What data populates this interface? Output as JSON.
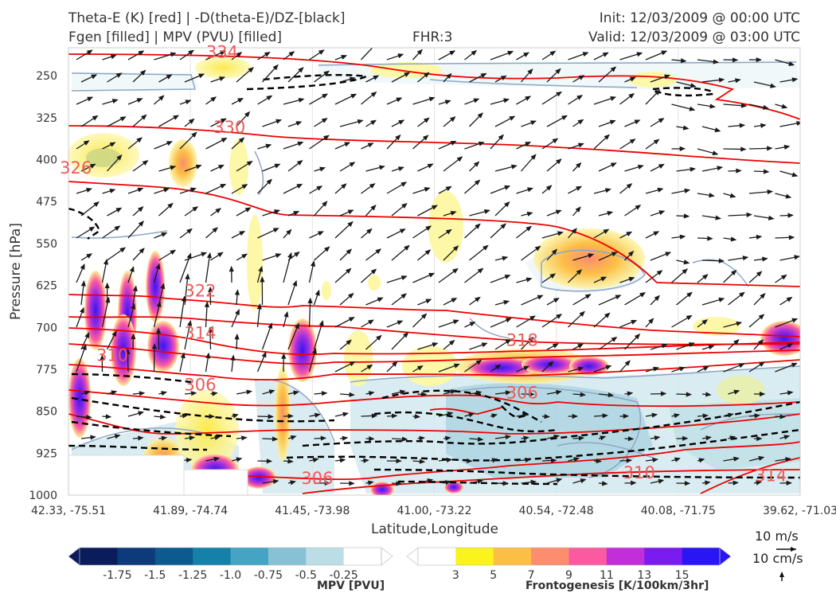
{
  "header": {
    "title_left_1": "Theta-E (K) [red] | -D(theta-E)/DZ-[black]",
    "title_left_2": "Fgen [filled] | MPV (PVU) [filled]",
    "fhr": "FHR:3",
    "init": "Init: 12/03/2009 @ 00:00 UTC",
    "valid": "Valid: 12/03/2009 @ 03:00 UTC"
  },
  "chart_data": {
    "type": "contour",
    "title": "Theta-E (K) [red] | -D(theta-E)/DZ-[black] / Fgen [filled] | MPV (PVU) [filled]",
    "xlabel": "Latitude,Longitude",
    "ylabel": "Pressure [hPa]",
    "x_ticks": [
      "42.33, -75.51",
      "41.89, -74.74",
      "41.45, -73.98",
      "41.00, -73.22",
      "40.54, -72.48",
      "40.08, -71.75",
      "39.62, -71.03"
    ],
    "y_ticks": [
      250,
      325,
      400,
      475,
      550,
      625,
      700,
      775,
      850,
      925,
      1000
    ],
    "ylim": [
      1000,
      200
    ],
    "y_inverted": true,
    "theta_e_labels": [
      {
        "text": "334",
        "x": 0.21,
        "p": 218
      },
      {
        "text": "330",
        "x": 0.22,
        "p": 352
      },
      {
        "text": "326",
        "x": 0.01,
        "p": 425
      },
      {
        "text": "322",
        "x": 0.18,
        "p": 645
      },
      {
        "text": "314",
        "x": 0.18,
        "p": 720
      },
      {
        "text": "310",
        "x": 0.06,
        "p": 760
      },
      {
        "text": "306",
        "x": 0.18,
        "p": 813
      },
      {
        "text": "318",
        "x": 0.62,
        "p": 733
      },
      {
        "text": "306",
        "x": 0.62,
        "p": 827
      },
      {
        "text": "306",
        "x": 0.34,
        "p": 980
      },
      {
        "text": "310",
        "x": 0.78,
        "p": 970
      },
      {
        "text": "314",
        "x": 0.96,
        "p": 975
      }
    ],
    "mpv_colorbar": {
      "label": "MPV [PVU]",
      "ticks": [
        "-1.75",
        "-1.5",
        "-1.25",
        "-1.0",
        "-0.75",
        "-0.5",
        "-0.25"
      ],
      "colors": [
        "#0b1c5c",
        "#0d3a78",
        "#0d5a8e",
        "#1580a8",
        "#45a3c4",
        "#86c1d6",
        "#bcdde6",
        "#ffffff"
      ]
    },
    "fgen_colorbar": {
      "label": "Frontogenesis [K/100km/3hr]",
      "ticks": [
        "3",
        "5",
        "7",
        "9",
        "11",
        "13",
        "15"
      ],
      "colors": [
        "#ffffff",
        "#fbf31c",
        "#fcbf46",
        "#fc8d6f",
        "#fb5aa0",
        "#c12fd8",
        "#7a1bf0",
        "#2a16f4"
      ]
    },
    "wind_reference": {
      "u": "10 m/s",
      "w": "10 cm/s"
    }
  },
  "colors": {
    "theta_e": "#ee0000",
    "dthetae_dz": "#000000",
    "mpv_contour": "#8da6c6",
    "label_red": "#ec5a5a"
  }
}
